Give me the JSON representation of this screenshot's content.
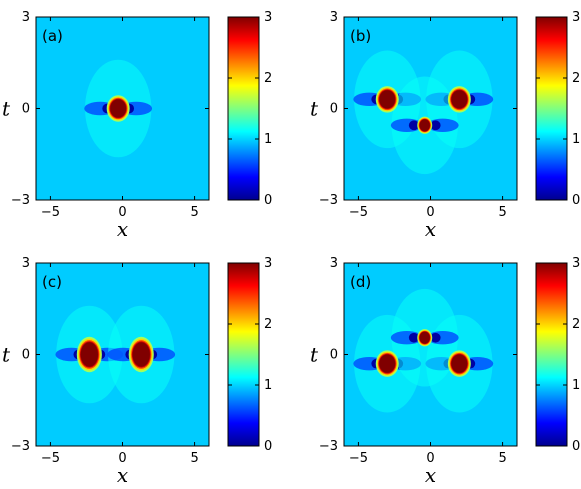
{
  "figure": {
    "background": "#ffffff",
    "colormap": "jet",
    "background_level_color": "#00ccff"
  },
  "chart_data": [
    {
      "type": "heatmap",
      "panel_label": "(a)",
      "xlabel": "x",
      "ylabel": "t",
      "xlim": [
        -6,
        6
      ],
      "ylim": [
        -3,
        3
      ],
      "xticks": [
        -5,
        0,
        5
      ],
      "yticks": [
        -3,
        0,
        3
      ],
      "clim": [
        0,
        3
      ],
      "colorbar_ticks": [
        0,
        1,
        2,
        3
      ],
      "background_level": 1.0,
      "peaks": [
        {
          "x": -0.3,
          "t": 0.0,
          "value": 3.0
        }
      ]
    },
    {
      "type": "heatmap",
      "panel_label": "(b)",
      "xlabel": "x",
      "ylabel": "t",
      "xlim": [
        -6,
        6
      ],
      "ylim": [
        -3,
        3
      ],
      "xticks": [
        -5,
        0,
        5
      ],
      "yticks": [
        -3,
        0,
        3
      ],
      "clim": [
        0,
        3
      ],
      "colorbar_ticks": [
        0,
        1,
        2,
        3
      ],
      "background_level": 1.0,
      "peaks": [
        {
          "x": -3.0,
          "t": 0.3,
          "value": 3.0
        },
        {
          "x": 2.0,
          "t": 0.3,
          "value": 3.0
        },
        {
          "x": -0.4,
          "t": -0.55,
          "value": 3.0
        }
      ]
    },
    {
      "type": "heatmap",
      "panel_label": "(c)",
      "xlabel": "x",
      "ylabel": "t",
      "xlim": [
        -6,
        6
      ],
      "ylim": [
        -3,
        3
      ],
      "xticks": [
        -5,
        0,
        5
      ],
      "yticks": [
        -3,
        0,
        3
      ],
      "clim": [
        0,
        3
      ],
      "colorbar_ticks": [
        0,
        1,
        2,
        3
      ],
      "background_level": 1.0,
      "peaks": [
        {
          "x": -2.3,
          "t": 0.0,
          "value": 3.0
        },
        {
          "x": 1.3,
          "t": 0.0,
          "value": 3.0
        }
      ]
    },
    {
      "type": "heatmap",
      "panel_label": "(d)",
      "xlabel": "x",
      "ylabel": "t",
      "xlim": [
        -6,
        6
      ],
      "ylim": [
        -3,
        3
      ],
      "xticks": [
        -5,
        0,
        5
      ],
      "yticks": [
        -3,
        0,
        3
      ],
      "clim": [
        0,
        3
      ],
      "colorbar_ticks": [
        0,
        1,
        2,
        3
      ],
      "background_level": 1.0,
      "peaks": [
        {
          "x": -3.0,
          "t": -0.3,
          "value": 3.0
        },
        {
          "x": 2.0,
          "t": -0.3,
          "value": 3.0
        },
        {
          "x": -0.4,
          "t": 0.55,
          "value": 3.0
        }
      ]
    }
  ]
}
